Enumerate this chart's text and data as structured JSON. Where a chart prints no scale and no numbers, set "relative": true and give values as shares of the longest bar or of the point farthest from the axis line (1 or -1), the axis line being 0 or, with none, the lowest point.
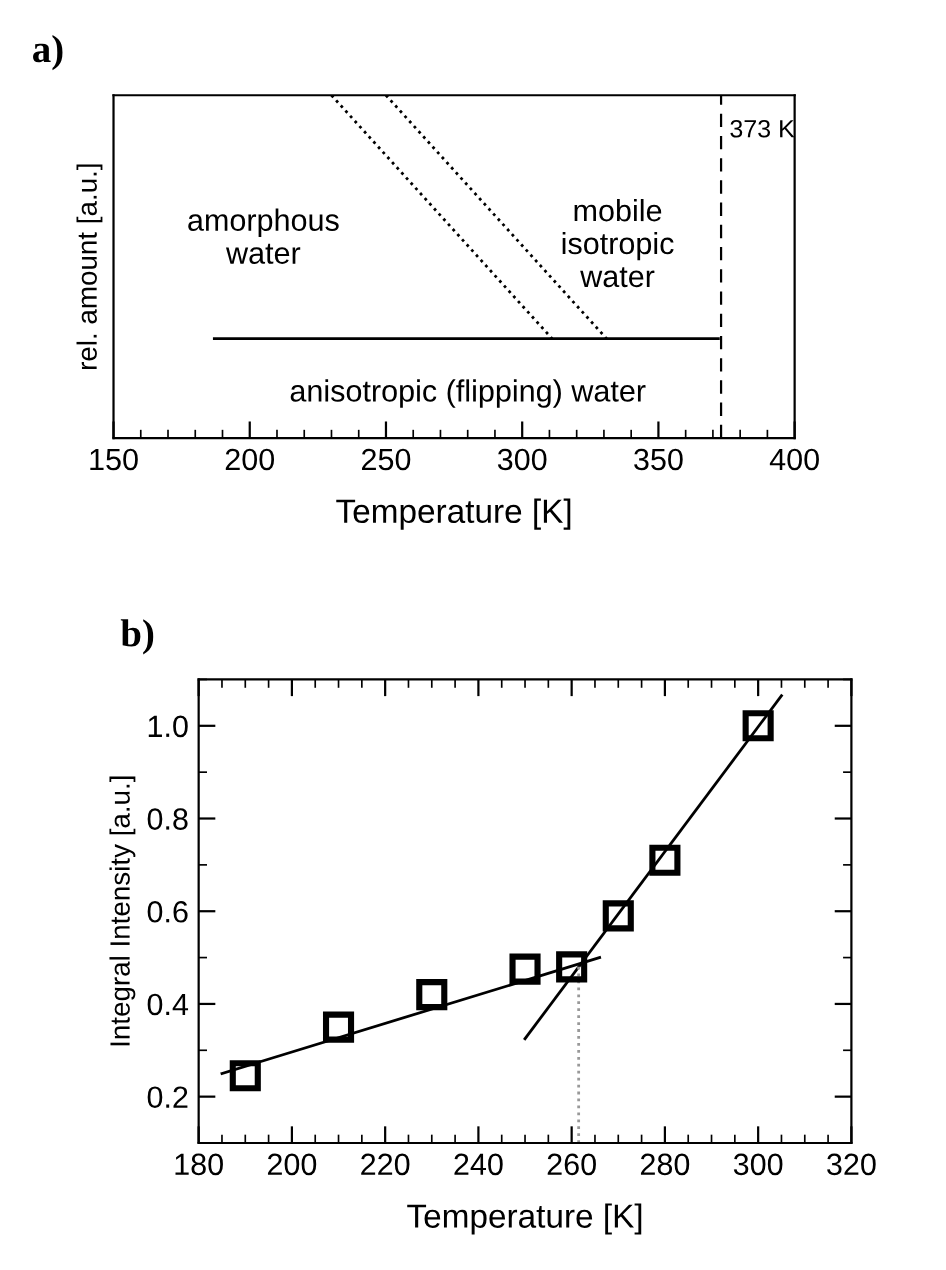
{
  "chart_data": [
    {
      "type": "line",
      "title": "a)",
      "xlabel": "Temperature [K]",
      "ylabel": "rel. amount [a.u.]",
      "relative": true,
      "xlim": [
        150,
        400
      ],
      "xticks": [
        150,
        200,
        250,
        300,
        350,
        400
      ],
      "series": [
        {
          "x": [
            187,
            372
          ],
          "values": [
            0.29,
            0.29
          ],
          "color": "#000000",
          "line_style": "solid"
        },
        {
          "x": [
            230,
            311
          ],
          "values": [
            1,
            0.29
          ],
          "color": "#000000",
          "line_style": "dotted"
        },
        {
          "x": [
            250,
            331
          ],
          "values": [
            1,
            0.29
          ],
          "color": "#000000",
          "line_style": "dotted"
        }
      ],
      "ref_lines": [
        {
          "axis": "x",
          "value": 373,
          "label": "373 K",
          "line_style": "dashed",
          "color": "#000000"
        }
      ],
      "annotations": [
        "amorphous\nwater",
        "mobile\nisotropic\nwater",
        "anisotropic (flipping) water"
      ],
      "grid": false,
      "legend": false
    },
    {
      "type": "scatter",
      "title": "b)",
      "xlabel": "Temperature [K]",
      "ylabel": "Integral Intensity [a.u.]",
      "xlim": [
        180,
        320
      ],
      "xticks": [
        180,
        200,
        220,
        240,
        260,
        280,
        300,
        320
      ],
      "ylim": [
        0.1,
        1.1
      ],
      "yticks": [
        {
          "value": 0.2,
          "label": "0.2"
        },
        {
          "value": 0.4,
          "label": "0.4"
        },
        {
          "value": 0.6,
          "label": "0.6"
        },
        {
          "value": 0.8,
          "label": "0.8"
        },
        {
          "value": 1.0,
          "label": "1.0"
        }
      ],
      "series": [
        {
          "x": [
            190,
            210,
            230,
            250,
            260,
            270,
            280,
            300
          ],
          "values": [
            0.245,
            0.35,
            0.42,
            0.475,
            0.48,
            0.59,
            0.71,
            1.0
          ],
          "color": "#000000",
          "marker": "square"
        },
        {
          "type": "line",
          "x": [
            185,
            266
          ],
          "values": [
            0.25,
            0.5
          ],
          "color": "#000000",
          "line_style": "solid",
          "marker": "none"
        },
        {
          "type": "line",
          "x": [
            250,
            305
          ],
          "values": [
            0.325,
            1.065
          ],
          "color": "#000000",
          "line_style": "solid",
          "marker": "none"
        },
        {
          "type": "line",
          "x": [
            261.5,
            261.5
          ],
          "values": [
            0.1,
            0.48
          ],
          "color": "#999999",
          "line_style": "dotted",
          "marker": "none"
        }
      ],
      "grid": false,
      "legend": false
    }
  ]
}
